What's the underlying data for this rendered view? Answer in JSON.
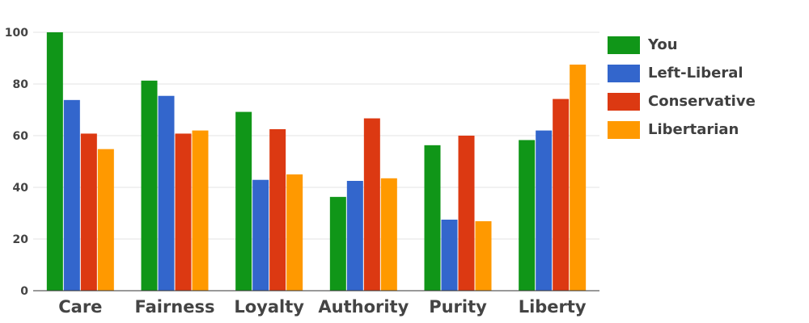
{
  "chart_data": {
    "type": "bar",
    "categories": [
      "Care",
      "Fairness",
      "Loyalty",
      "Authority",
      "Purity",
      "Liberty"
    ],
    "series": [
      {
        "name": "You",
        "color": "#109618",
        "values": [
          100,
          81.3,
          69.2,
          36.3,
          56.3,
          58.3
        ]
      },
      {
        "name": "Left-Liberal",
        "color": "#3366cc",
        "values": [
          73.8,
          75.4,
          42.9,
          42.5,
          27.5,
          62
        ]
      },
      {
        "name": "Conservative",
        "color": "#dc3912",
        "values": [
          60.8,
          60.8,
          62.5,
          66.7,
          60,
          74.2
        ]
      },
      {
        "name": "Libertarian",
        "color": "#ff9900",
        "values": [
          54.8,
          62,
          45,
          43.5,
          26.9,
          87.5
        ]
      }
    ],
    "yticks": [
      0,
      20,
      40,
      60,
      80,
      100
    ],
    "ylim": [
      0,
      100
    ],
    "grid": true,
    "legend_position": "right"
  }
}
